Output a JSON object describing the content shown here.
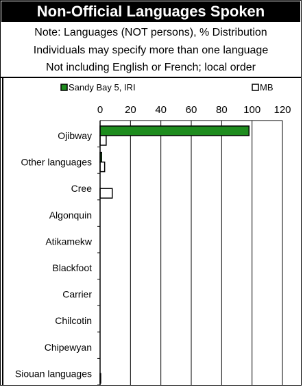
{
  "header": {
    "title": "Non-Official Languages Spoken",
    "notes": [
      "Note: Languages (NOT persons), % Distribution",
      "Individuals may specify more than one language",
      "Not including English or French; local order"
    ]
  },
  "colors": {
    "title_bg": "#000000",
    "series_sandy_bay": "#1e8c1e",
    "series_mb": "#ffffff"
  },
  "chart_data": {
    "type": "bar",
    "orientation": "horizontal",
    "categories": [
      "Ojibway",
      "Other languages",
      "Cree",
      "Algonquin",
      "Atikamekw",
      "Blackfoot",
      "Carrier",
      "Chilcotin",
      "Chipewyan",
      "Siouan languages"
    ],
    "series": [
      {
        "name": "Sandy Bay 5, IRI",
        "color": "#1e8c1e",
        "values": [
          98,
          1,
          0,
          0,
          0,
          0,
          0,
          0,
          0,
          0
        ]
      },
      {
        "name": "MB",
        "color": "#ffffff",
        "values": [
          4,
          3,
          8,
          0,
          0,
          0,
          0,
          0,
          0,
          0.4
        ]
      }
    ],
    "xlim": [
      0,
      120
    ],
    "xticks": [
      "0",
      "20",
      "40",
      "60",
      "80",
      "100",
      "120"
    ],
    "grid": true,
    "legend_position": "top"
  }
}
